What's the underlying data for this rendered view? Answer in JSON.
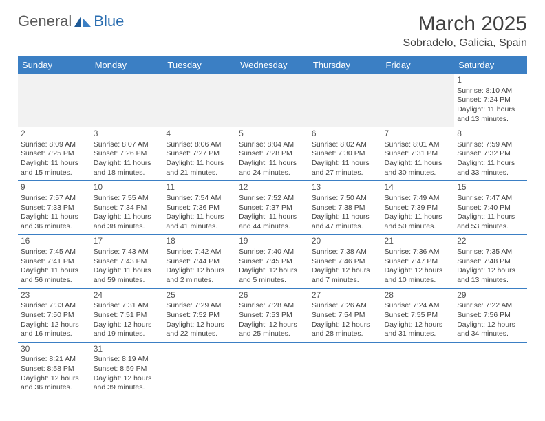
{
  "brand": {
    "part1": "General",
    "part2": "Blue"
  },
  "title": "March 2025",
  "location": "Sobradelo, Galicia, Spain",
  "colors": {
    "header_bg": "#3b7fc4",
    "header_text": "#ffffff",
    "border": "#3b7fc4",
    "body_text": "#444444",
    "logo_gray": "#5a5a5a",
    "logo_blue": "#2a6db0"
  },
  "weekdays": [
    "Sunday",
    "Monday",
    "Tuesday",
    "Wednesday",
    "Thursday",
    "Friday",
    "Saturday"
  ],
  "weeks": [
    [
      null,
      null,
      null,
      null,
      null,
      null,
      {
        "n": "1",
        "sr": "Sunrise: 8:10 AM",
        "ss": "Sunset: 7:24 PM",
        "dl": "Daylight: 11 hours and 13 minutes."
      }
    ],
    [
      {
        "n": "2",
        "sr": "Sunrise: 8:09 AM",
        "ss": "Sunset: 7:25 PM",
        "dl": "Daylight: 11 hours and 15 minutes."
      },
      {
        "n": "3",
        "sr": "Sunrise: 8:07 AM",
        "ss": "Sunset: 7:26 PM",
        "dl": "Daylight: 11 hours and 18 minutes."
      },
      {
        "n": "4",
        "sr": "Sunrise: 8:06 AM",
        "ss": "Sunset: 7:27 PM",
        "dl": "Daylight: 11 hours and 21 minutes."
      },
      {
        "n": "5",
        "sr": "Sunrise: 8:04 AM",
        "ss": "Sunset: 7:28 PM",
        "dl": "Daylight: 11 hours and 24 minutes."
      },
      {
        "n": "6",
        "sr": "Sunrise: 8:02 AM",
        "ss": "Sunset: 7:30 PM",
        "dl": "Daylight: 11 hours and 27 minutes."
      },
      {
        "n": "7",
        "sr": "Sunrise: 8:01 AM",
        "ss": "Sunset: 7:31 PM",
        "dl": "Daylight: 11 hours and 30 minutes."
      },
      {
        "n": "8",
        "sr": "Sunrise: 7:59 AM",
        "ss": "Sunset: 7:32 PM",
        "dl": "Daylight: 11 hours and 33 minutes."
      }
    ],
    [
      {
        "n": "9",
        "sr": "Sunrise: 7:57 AM",
        "ss": "Sunset: 7:33 PM",
        "dl": "Daylight: 11 hours and 36 minutes."
      },
      {
        "n": "10",
        "sr": "Sunrise: 7:55 AM",
        "ss": "Sunset: 7:34 PM",
        "dl": "Daylight: 11 hours and 38 minutes."
      },
      {
        "n": "11",
        "sr": "Sunrise: 7:54 AM",
        "ss": "Sunset: 7:36 PM",
        "dl": "Daylight: 11 hours and 41 minutes."
      },
      {
        "n": "12",
        "sr": "Sunrise: 7:52 AM",
        "ss": "Sunset: 7:37 PM",
        "dl": "Daylight: 11 hours and 44 minutes."
      },
      {
        "n": "13",
        "sr": "Sunrise: 7:50 AM",
        "ss": "Sunset: 7:38 PM",
        "dl": "Daylight: 11 hours and 47 minutes."
      },
      {
        "n": "14",
        "sr": "Sunrise: 7:49 AM",
        "ss": "Sunset: 7:39 PM",
        "dl": "Daylight: 11 hours and 50 minutes."
      },
      {
        "n": "15",
        "sr": "Sunrise: 7:47 AM",
        "ss": "Sunset: 7:40 PM",
        "dl": "Daylight: 11 hours and 53 minutes."
      }
    ],
    [
      {
        "n": "16",
        "sr": "Sunrise: 7:45 AM",
        "ss": "Sunset: 7:41 PM",
        "dl": "Daylight: 11 hours and 56 minutes."
      },
      {
        "n": "17",
        "sr": "Sunrise: 7:43 AM",
        "ss": "Sunset: 7:43 PM",
        "dl": "Daylight: 11 hours and 59 minutes."
      },
      {
        "n": "18",
        "sr": "Sunrise: 7:42 AM",
        "ss": "Sunset: 7:44 PM",
        "dl": "Daylight: 12 hours and 2 minutes."
      },
      {
        "n": "19",
        "sr": "Sunrise: 7:40 AM",
        "ss": "Sunset: 7:45 PM",
        "dl": "Daylight: 12 hours and 5 minutes."
      },
      {
        "n": "20",
        "sr": "Sunrise: 7:38 AM",
        "ss": "Sunset: 7:46 PM",
        "dl": "Daylight: 12 hours and 7 minutes."
      },
      {
        "n": "21",
        "sr": "Sunrise: 7:36 AM",
        "ss": "Sunset: 7:47 PM",
        "dl": "Daylight: 12 hours and 10 minutes."
      },
      {
        "n": "22",
        "sr": "Sunrise: 7:35 AM",
        "ss": "Sunset: 7:48 PM",
        "dl": "Daylight: 12 hours and 13 minutes."
      }
    ],
    [
      {
        "n": "23",
        "sr": "Sunrise: 7:33 AM",
        "ss": "Sunset: 7:50 PM",
        "dl": "Daylight: 12 hours and 16 minutes."
      },
      {
        "n": "24",
        "sr": "Sunrise: 7:31 AM",
        "ss": "Sunset: 7:51 PM",
        "dl": "Daylight: 12 hours and 19 minutes."
      },
      {
        "n": "25",
        "sr": "Sunrise: 7:29 AM",
        "ss": "Sunset: 7:52 PM",
        "dl": "Daylight: 12 hours and 22 minutes."
      },
      {
        "n": "26",
        "sr": "Sunrise: 7:28 AM",
        "ss": "Sunset: 7:53 PM",
        "dl": "Daylight: 12 hours and 25 minutes."
      },
      {
        "n": "27",
        "sr": "Sunrise: 7:26 AM",
        "ss": "Sunset: 7:54 PM",
        "dl": "Daylight: 12 hours and 28 minutes."
      },
      {
        "n": "28",
        "sr": "Sunrise: 7:24 AM",
        "ss": "Sunset: 7:55 PM",
        "dl": "Daylight: 12 hours and 31 minutes."
      },
      {
        "n": "29",
        "sr": "Sunrise: 7:22 AM",
        "ss": "Sunset: 7:56 PM",
        "dl": "Daylight: 12 hours and 34 minutes."
      }
    ],
    [
      {
        "n": "30",
        "sr": "Sunrise: 8:21 AM",
        "ss": "Sunset: 8:58 PM",
        "dl": "Daylight: 12 hours and 36 minutes."
      },
      {
        "n": "31",
        "sr": "Sunrise: 8:19 AM",
        "ss": "Sunset: 8:59 PM",
        "dl": "Daylight: 12 hours and 39 minutes."
      },
      null,
      null,
      null,
      null,
      null
    ]
  ]
}
